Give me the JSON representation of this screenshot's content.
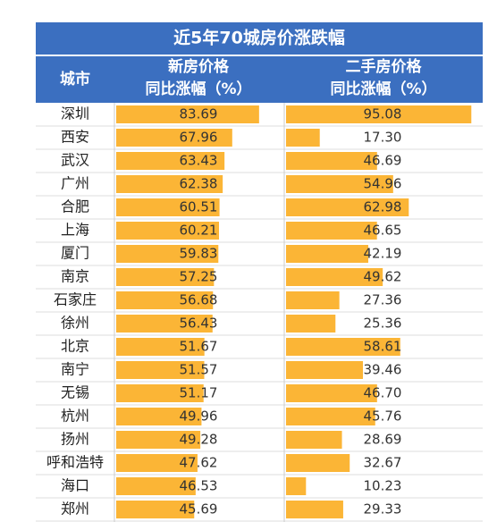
{
  "chart_data": {
    "type": "table-bar",
    "title": "近5年70城房价涨跌幅",
    "category_header": "城市",
    "categories": [
      "深圳",
      "西安",
      "武汉",
      "广州",
      "合肥",
      "上海",
      "厦门",
      "南京",
      "石家庄",
      "徐州",
      "北京",
      "南宁",
      "无锡",
      "杭州",
      "扬州",
      "呼和浩特",
      "海口",
      "郑州"
    ],
    "xlim": [
      0,
      100
    ],
    "color": "#fbb536",
    "series": [
      {
        "name": "新房价格\n同比涨幅（%）",
        "values": [
          83.69,
          67.96,
          63.43,
          62.38,
          60.51,
          60.21,
          59.83,
          57.25,
          56.68,
          56.43,
          51.67,
          51.57,
          51.17,
          49.96,
          49.28,
          47.62,
          46.53,
          45.69
        ]
      },
      {
        "name": "二手房价格\n同比涨幅（%）",
        "values": [
          95.08,
          17.3,
          46.69,
          54.96,
          62.98,
          46.65,
          42.19,
          49.62,
          27.36,
          25.36,
          58.61,
          39.46,
          46.7,
          45.76,
          28.69,
          32.67,
          10.23,
          29.33
        ],
        "value_labels": [
          "95.08",
          "17.30",
          "46.69",
          "54.96",
          "62.98",
          "46.65",
          "42.19",
          "49.62",
          "27.36",
          "25.36",
          "58.61",
          "39.46",
          "46.70",
          "45.76",
          "28.69",
          "32.67",
          "10.23",
          "29.33"
        ]
      }
    ]
  }
}
